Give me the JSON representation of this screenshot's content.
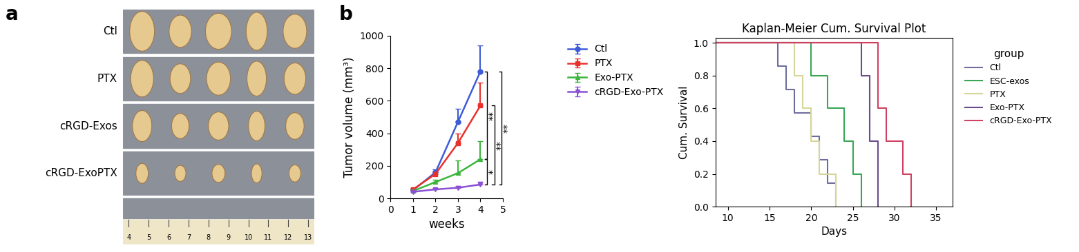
{
  "photo_panel": {
    "panel_label": "a",
    "rows": [
      "Ctl",
      "PTX",
      "cRGD-Exos",
      "cRGD-ExoPTX"
    ],
    "ruler": [
      4,
      5,
      6,
      7,
      8,
      9,
      10,
      11,
      12,
      13
    ]
  },
  "chart_data": [
    {
      "type": "line",
      "panel_label": "b",
      "x_label": "weeks",
      "y_label": "Tumor volume (mm³)",
      "x": [
        1,
        2,
        3,
        4
      ],
      "xlim": [
        0,
        5
      ],
      "xticks": [
        0,
        1,
        2,
        3,
        4,
        5
      ],
      "ylim": [
        0,
        1000
      ],
      "yticks": [
        0,
        200,
        400,
        600,
        800,
        1000
      ],
      "legend": "upper left",
      "series": [
        {
          "name": "Ctl",
          "color": "#3d5bd9",
          "marker": "circle",
          "values": [
            50,
            160,
            470,
            780
          ],
          "errors": [
            10,
            20,
            80,
            160
          ]
        },
        {
          "name": "PTX",
          "color": "#e8312b",
          "marker": "square",
          "values": [
            55,
            150,
            340,
            570
          ],
          "errors": [
            8,
            15,
            60,
            140
          ]
        },
        {
          "name": "Exo-PTX",
          "color": "#3cb53c",
          "marker": "triangle_up",
          "values": [
            45,
            100,
            155,
            240
          ],
          "errors": [
            8,
            15,
            80,
            110
          ]
        },
        {
          "name": "cRGD-Exo-PTX",
          "color": "#8a4fd6",
          "marker": "triangle_down",
          "values": [
            40,
            55,
            65,
            85
          ],
          "errors": [
            5,
            8,
            10,
            15
          ]
        }
      ],
      "annotations": [
        {
          "text": "**",
          "groups": [
            "Ctl",
            "Exo-PTX"
          ]
        },
        {
          "text": "*",
          "groups": [
            "Exo-PTX",
            "cRGD-Exo-PTX"
          ]
        },
        {
          "text": "**",
          "groups": [
            "PTX",
            "cRGD-Exo-PTX"
          ]
        },
        {
          "text": "**",
          "groups": [
            "Ctl",
            "cRGD-Exo-PTX"
          ]
        }
      ]
    },
    {
      "type": "step",
      "title": "Kaplan-Meier Cum. Survival Plot",
      "x_label": "Days",
      "y_label": "Cum. Survival",
      "xlim": [
        8.5,
        37
      ],
      "xticks": [
        10,
        15,
        20,
        25,
        30,
        35
      ],
      "ylim": [
        0,
        1.03
      ],
      "yticks": [
        0.0,
        0.2,
        0.4,
        0.6,
        0.8,
        1.0
      ],
      "legend": "upper left",
      "legend_title": "group",
      "series": [
        {
          "name": "Ctl",
          "color": "#6e6e9e",
          "x": [
            0,
            16,
            17,
            18,
            20,
            21,
            22,
            23
          ],
          "values": [
            1.0,
            0.857,
            0.714,
            0.571,
            0.429,
            0.286,
            0.143,
            0.0
          ]
        },
        {
          "name": "ESC-exos",
          "color": "#3aa655",
          "x": [
            0,
            20,
            22,
            24,
            25,
            26
          ],
          "values": [
            1.0,
            0.8,
            0.6,
            0.4,
            0.2,
            0.0
          ]
        },
        {
          "name": "PTX",
          "color": "#d6d69a",
          "x": [
            0,
            18,
            19,
            20,
            21,
            23
          ],
          "values": [
            1.0,
            0.8,
            0.6,
            0.4,
            0.2,
            0.0
          ]
        },
        {
          "name": "Exo-PTX",
          "color": "#6a4c8c",
          "x": [
            0,
            26,
            27,
            28
          ],
          "values": [
            1.0,
            0.8,
            0.4,
            0.0
          ]
        },
        {
          "name": "cRGD-Exo-PTX",
          "color": "#d04060",
          "x": [
            0,
            28,
            29,
            31,
            32
          ],
          "values": [
            1.0,
            0.6,
            0.4,
            0.2,
            0.0
          ]
        }
      ]
    }
  ]
}
